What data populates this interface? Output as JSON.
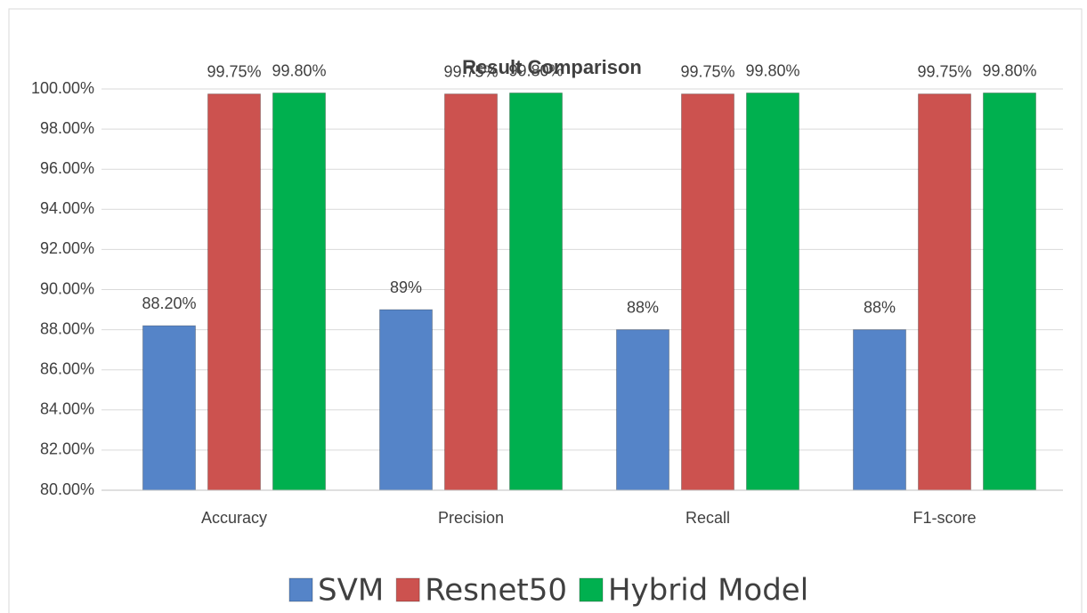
{
  "chart_data": {
    "type": "bar",
    "title": "Result Comparison",
    "categories": [
      "Accuracy",
      "Precision",
      "Recall",
      "F1-score"
    ],
    "series": [
      {
        "name": "SVM",
        "color": "#5584c8",
        "values": [
          88.2,
          89,
          88,
          88
        ],
        "value_labels": [
          "88.20%",
          "89%",
          "88%",
          "88%"
        ]
      },
      {
        "name": "Resnet50",
        "color": "#cc524f",
        "values": [
          99.75,
          99.75,
          99.75,
          99.75
        ],
        "value_labels": [
          "99.75%",
          "99.75%",
          "99.75%",
          "99.75%"
        ]
      },
      {
        "name": "Hybrid Model",
        "color": "#00b04f",
        "values": [
          99.8,
          99.8,
          99.8,
          99.8
        ],
        "value_labels": [
          "99.80%",
          "99.80%",
          "99.80%",
          "99.80%"
        ]
      }
    ],
    "ylim": [
      80,
      100
    ],
    "yticks": [
      {
        "value": 80,
        "label": "80.00%"
      },
      {
        "value": 82,
        "label": "82.00%"
      },
      {
        "value": 84,
        "label": "84.00%"
      },
      {
        "value": 86,
        "label": "86.00%"
      },
      {
        "value": 88,
        "label": "88.00%"
      },
      {
        "value": 90,
        "label": "90.00%"
      },
      {
        "value": 92,
        "label": "92.00%"
      },
      {
        "value": 94,
        "label": "94.00%"
      },
      {
        "value": 96,
        "label": "96.00%"
      },
      {
        "value": 98,
        "label": "98.00%"
      },
      {
        "value": 100,
        "label": "100.00%"
      }
    ],
    "grid": true
  }
}
